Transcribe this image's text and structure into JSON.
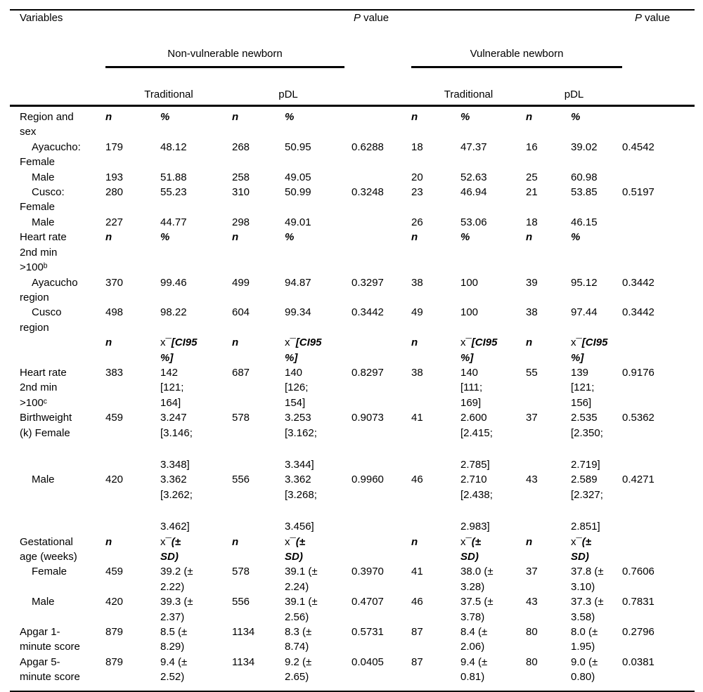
{
  "page": {
    "background": "#ffffff",
    "text_color": "#000000",
    "rule_color": "#000000"
  },
  "table": {
    "header": {
      "variables_label": "Variables",
      "p_value": {
        "italic": "P",
        "rest": " value"
      },
      "groups": [
        {
          "label": "Non-vulnerable newborn",
          "columns": [
            "Traditional",
            "pDL"
          ]
        },
        {
          "label": "Vulnerable newborn",
          "columns": [
            "Traditional",
            "pDL"
          ]
        }
      ]
    },
    "rows": [
      {
        "style": "sub",
        "indent": false,
        "label": "Region and\nsex",
        "cells": [
          "n",
          "%",
          "n",
          "%",
          "",
          "n",
          "%",
          "n",
          "%",
          ""
        ]
      },
      {
        "style": "data",
        "indent": true,
        "label": "Ayacucho:\nFemale",
        "cells": [
          "179",
          "48.12",
          "268",
          "50.95",
          "0.6288",
          "18",
          "47.37",
          "16",
          "39.02",
          "0.4542"
        ]
      },
      {
        "style": "data",
        "indent": true,
        "label": "Male",
        "cells": [
          "193",
          "51.88",
          "258",
          "49.05",
          "",
          "20",
          "52.63",
          "25",
          "60.98",
          ""
        ]
      },
      {
        "style": "data",
        "indent": true,
        "label": "Cusco:\nFemale",
        "cells": [
          "280",
          "55.23",
          "310",
          "50.99",
          "0.3248",
          "23",
          "46.94",
          "21",
          "53.85",
          "0.5197"
        ]
      },
      {
        "style": "data",
        "indent": true,
        "label": "Male",
        "cells": [
          "227",
          "44.77",
          "298",
          "49.01",
          "",
          "26",
          "53.06",
          "18",
          "46.15",
          ""
        ]
      },
      {
        "style": "sub",
        "indent": false,
        "label": "Heart rate\n2nd min\n>100ᵇ",
        "cells": [
          "n",
          "%",
          "n",
          "%",
          "",
          "n",
          "%",
          "n",
          "%",
          ""
        ]
      },
      {
        "style": "data",
        "indent": true,
        "label": "Ayacucho\nregion",
        "cells": [
          "370",
          "99.46",
          "499",
          "94.87",
          "0.3297",
          "38",
          "100",
          "39",
          "95.12",
          "0.3442"
        ]
      },
      {
        "style": "data",
        "indent": true,
        "label": "Cusco\nregion",
        "cells": [
          "498",
          "98.22",
          "604",
          "99.34",
          "0.3442",
          "49",
          "100",
          "38",
          "97.44",
          "0.3442"
        ]
      },
      {
        "style": "sub",
        "indent": false,
        "label": "",
        "cells": [
          "n",
          {
            "plain": "x¯",
            "bi": "[CI95\n%]"
          },
          "n",
          {
            "plain": "x¯",
            "bi": "[CI95\n%]"
          },
          "",
          "n",
          {
            "plain": "x¯",
            "bi": "[CI95\n%]"
          },
          "n",
          {
            "plain": "x¯",
            "bi": "[CI95\n%]"
          },
          ""
        ]
      },
      {
        "style": "data",
        "indent": false,
        "label": "Heart rate\n2nd min\n>100ᶜ",
        "cells": [
          "383",
          "142\n[121;\n164]",
          "687",
          "140\n[126;\n154]",
          "0.8297",
          "38",
          "140\n[111;\n169]",
          "55",
          "139\n[121;\n156]",
          "0.9176"
        ]
      },
      {
        "style": "data",
        "indent": false,
        "label": "Birthweight\n(k) Female",
        "cells": [
          "459",
          "3.247\n[3.146;",
          "578",
          "3.253\n[3.162;",
          "0.9073",
          "41",
          "2.600\n[2.415;",
          "37",
          "2.535\n[2.350;",
          "0.5362"
        ]
      },
      {
        "style": "cont",
        "indent": false,
        "label": "",
        "cells": [
          "",
          "3.348]",
          "",
          "3.344]",
          "",
          "",
          "2.785]",
          "",
          "2.719]",
          ""
        ]
      },
      {
        "style": "data",
        "indent": true,
        "label": "Male",
        "cells": [
          "420",
          "3.362\n[3.262;",
          "556",
          "3.362\n[3.268;",
          "0.9960",
          "46",
          "2.710\n[2.438;",
          "43",
          "2.589\n[2.327;",
          "0.4271"
        ]
      },
      {
        "style": "cont",
        "indent": false,
        "label": "",
        "cells": [
          "",
          "3.462]",
          "",
          "3.456]",
          "",
          "",
          "2.983]",
          "",
          "2.851]",
          ""
        ]
      },
      {
        "style": "sub",
        "indent": false,
        "label": "Gestational\nage (weeks)",
        "cells": [
          "n",
          {
            "plain": "x¯",
            "bi": "(±\nSD)"
          },
          "n",
          {
            "plain": "x¯",
            "bi": "(±\nSD)"
          },
          "",
          "n",
          {
            "plain": "x¯",
            "bi": "(±\nSD)"
          },
          "n",
          {
            "plain": "x¯",
            "bi": "(±\nSD)"
          },
          ""
        ]
      },
      {
        "style": "data",
        "indent": true,
        "label": "Female",
        "cells": [
          "459",
          "39.2 (±\n2.22)",
          "578",
          "39.1 (±\n2.24)",
          "0.3970",
          "41",
          "38.0 (±\n3.28)",
          "37",
          "37.8 (±\n3.10)",
          "0.7606"
        ]
      },
      {
        "style": "data",
        "indent": true,
        "label": "Male",
        "cells": [
          "420",
          "39.3 (±\n2.37)",
          "556",
          "39.1 (±\n2.56)",
          "0.4707",
          "46",
          "37.5 (±\n3.78)",
          "43",
          "37.3 (±\n3.58)",
          "0.7831"
        ]
      },
      {
        "style": "data",
        "indent": false,
        "label": "Apgar 1-\nminute score",
        "cells": [
          "879",
          "8.5 (±\n8.29)",
          "1134",
          "8.3 (±\n8.74)",
          "0.5731",
          "87",
          "8.4 (±\n2.06)",
          "80",
          "8.0 (±\n1.95)",
          "0.2796"
        ]
      },
      {
        "style": "data",
        "indent": false,
        "label": "Apgar 5-\nminute score",
        "cells": [
          "879",
          "9.4 (±\n2.52)",
          "1134",
          "9.2 (±\n2.65)",
          "0.0405",
          "87",
          "9.4 (±\n0.81)",
          "80",
          "9.0 (±\n0.80)",
          "0.0381"
        ]
      }
    ]
  }
}
